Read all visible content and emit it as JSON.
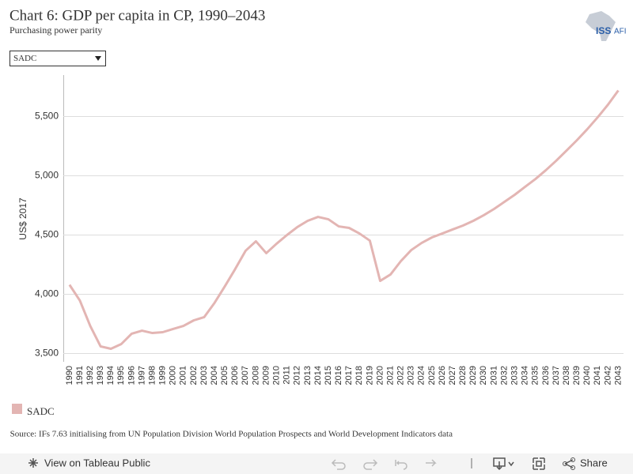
{
  "chart_data": {
    "type": "line",
    "title": "Chart 6: GDP per capita in CP, 1990–2043",
    "subtitle": "Purchasing power parity",
    "filter": "SADC",
    "logo": "ISS",
    "logo_suffix": "AFI",
    "ylabel": "US$ 2017",
    "source": "Source: IFs 7.63 initialising from UN Population Division World Population Prospects and World Development Indicators data",
    "toolbar": {
      "view": "View on Tableau Public",
      "share": "Share"
    },
    "x": [
      1990,
      1991,
      1992,
      1993,
      1994,
      1995,
      1996,
      1997,
      1998,
      1999,
      2000,
      2001,
      2002,
      2003,
      2004,
      2005,
      2006,
      2007,
      2008,
      2009,
      2010,
      2011,
      2012,
      2013,
      2014,
      2015,
      2016,
      2017,
      2018,
      2019,
      2020,
      2021,
      2022,
      2023,
      2024,
      2025,
      2026,
      2027,
      2028,
      2029,
      2030,
      2031,
      2032,
      2033,
      2034,
      2035,
      2036,
      2037,
      2038,
      2039,
      2040,
      2041,
      2042,
      2043
    ],
    "xlim": [
      1989.4,
      2043.5
    ],
    "series": [
      {
        "name": "SADC",
        "color": "#e3b5b3",
        "values": [
          4080,
          3947,
          3733,
          3560,
          3540,
          3580,
          3667,
          3693,
          3673,
          3680,
          3707,
          3733,
          3780,
          3807,
          3927,
          4067,
          4213,
          4367,
          4447,
          4347,
          4427,
          4500,
          4567,
          4620,
          4653,
          4633,
          4573,
          4560,
          4513,
          4453,
          4113,
          4167,
          4280,
          4373,
          4433,
          4480,
          4513,
          4547,
          4580,
          4620,
          4667,
          4720,
          4780,
          4840,
          4907,
          4973,
          5047,
          5127,
          5213,
          5300,
          5393,
          5493,
          5600,
          5720
        ]
      }
    ],
    "ylim": [
      3430,
      5850
    ],
    "yticks": [
      {
        "value": 3500,
        "label": "3,500"
      },
      {
        "value": 4000,
        "label": "4,000"
      },
      {
        "value": 4500,
        "label": "4,500"
      },
      {
        "value": 5000,
        "label": "5,000"
      },
      {
        "value": 5500,
        "label": "5,500"
      }
    ],
    "grid": true
  }
}
